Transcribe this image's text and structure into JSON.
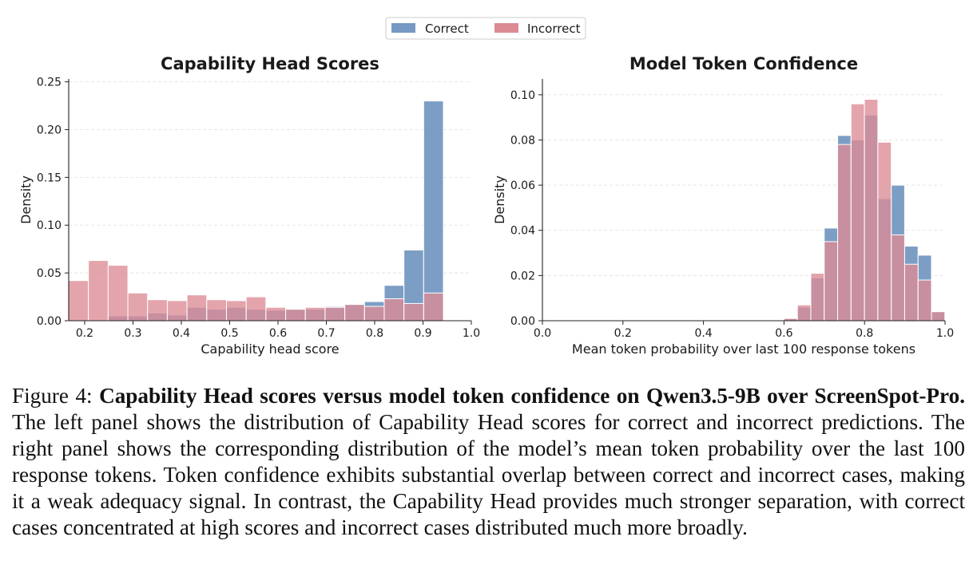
{
  "figure": {
    "legend": [
      {
        "label": "Correct",
        "color": "#7599c2"
      },
      {
        "label": "Incorrect",
        "color": "#dc8a95"
      }
    ]
  },
  "chart_data": [
    {
      "type": "bar",
      "title": "Capability Head Scores",
      "xlabel": "Capability head score",
      "ylabel": "Density",
      "xlim": [
        0.167,
        1.0
      ],
      "ylim": [
        0.0,
        0.253
      ],
      "xticks": [
        "0.2",
        "0.3",
        "0.4",
        "0.5",
        "0.6",
        "0.7",
        "0.8",
        "0.9",
        "1.0"
      ],
      "yticks": [
        "0.00",
        "0.05",
        "0.10",
        "0.15",
        "0.20",
        "0.25"
      ],
      "grid": "horizontal",
      "bin_start": 0.167,
      "bin_width": 0.0408,
      "series": [
        {
          "name": "Correct",
          "color": "#7599c2",
          "values": [
            0.0,
            0.0,
            0.005,
            0.005,
            0.008,
            0.006,
            0.014,
            0.012,
            0.014,
            0.012,
            0.011,
            0.012,
            0.012,
            0.015,
            0.017,
            0.02,
            0.037,
            0.074,
            0.23
          ]
        },
        {
          "name": "Incorrect",
          "color": "#dc8a95",
          "values": [
            0.042,
            0.063,
            0.058,
            0.029,
            0.022,
            0.021,
            0.027,
            0.022,
            0.021,
            0.025,
            0.014,
            0.012,
            0.014,
            0.014,
            0.017,
            0.015,
            0.023,
            0.018,
            0.029
          ]
        }
      ]
    },
    {
      "type": "bar",
      "title": "Model Token Confidence",
      "xlabel": "Mean token probability over last 100 response tokens",
      "ylabel": "Density",
      "xlim": [
        0.0,
        1.0
      ],
      "ylim": [
        0.0,
        0.107
      ],
      "xticks": [
        "0.0",
        "0.2",
        "0.4",
        "0.6",
        "0.8",
        "1.0"
      ],
      "yticks": [
        "0.00",
        "0.02",
        "0.04",
        "0.06",
        "0.08",
        "0.10"
      ],
      "grid": "horizontal",
      "bin_start": 0.6,
      "bin_width": 0.0333,
      "series": [
        {
          "name": "Correct",
          "color": "#7599c2",
          "values": [
            0.001,
            0.006,
            0.019,
            0.041,
            0.082,
            0.08,
            0.091,
            0.054,
            0.06,
            0.033,
            0.029,
            0.004
          ]
        },
        {
          "name": "Incorrect",
          "color": "#dc8a95",
          "values": [
            0.001,
            0.007,
            0.021,
            0.035,
            0.078,
            0.096,
            0.098,
            0.079,
            0.038,
            0.025,
            0.018,
            0.004
          ]
        }
      ]
    }
  ],
  "caption": {
    "label": "Figure 4:",
    "lead": "Capability Head scores versus model token confidence on Qwen3.5-9B over ScreenSpot-Pro.",
    "body": "The left panel shows the distribution of Capability Head scores for correct and incorrect predictions.  The right panel shows the corresponding distribution of the model’s mean token probability over the last 100 response tokens. Token confidence exhibits substantial overlap between correct and incorrect cases, making it a weak adequacy signal.  In contrast, the Capability Head provides much stronger separation, with correct cases concentrated at high scores and incorrect cases distributed much more broadly."
  }
}
